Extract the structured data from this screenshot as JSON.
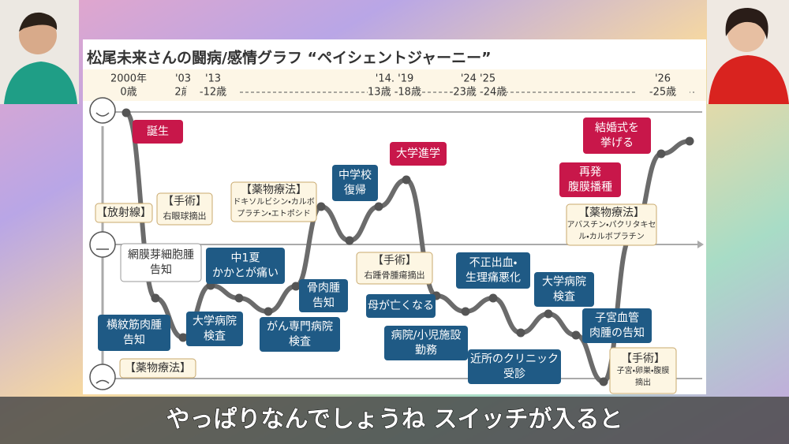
{
  "slide": {
    "title": "松尾未来さんの闘病/感情グラフ “ペイシェントジャーニー”",
    "timeline": [
      {
        "year": "2000年",
        "age": "0歳"
      },
      {
        "year": "'03",
        "age": "2歳"
      },
      {
        "year": "'13",
        "age": "-12歳"
      },
      {
        "year": "'14.  '19",
        "age": "13歳 -18歳"
      },
      {
        "year": "'24  '25",
        "age": "-23歳 -24歳"
      },
      {
        "year": "'26",
        "age": "-25歳"
      }
    ],
    "events": [
      {
        "lines": [
          "誕生"
        ],
        "style": "red"
      },
      {
        "lines": [
          "【手術】",
          "右眼球摘出"
        ],
        "style": "cream"
      },
      {
        "lines": [
          "【放射線】"
        ],
        "style": "cream"
      },
      {
        "lines": [
          "網膜芽細胞腫",
          "告知"
        ],
        "style": "white"
      },
      {
        "lines": [
          "横紋筋肉腫",
          "告知"
        ],
        "style": "blue"
      },
      {
        "lines": [
          "【薬物療法】"
        ],
        "style": "cream"
      },
      {
        "lines": [
          "中1夏",
          "かかとが痛い"
        ],
        "style": "blue"
      },
      {
        "lines": [
          "大学病院",
          "検査"
        ],
        "style": "blue"
      },
      {
        "lines": [
          "がん専門病院",
          "検査"
        ],
        "style": "blue"
      },
      {
        "lines": [
          "骨肉腫",
          "告知"
        ],
        "style": "blue"
      },
      {
        "lines": [
          "【薬物療法】",
          "ドキソルビシン・カルボ",
          "プラチン・エトポシド"
        ],
        "style": "cream"
      },
      {
        "lines": [
          "中学校",
          "復帰"
        ],
        "style": "blue"
      },
      {
        "lines": [
          "大学進学"
        ],
        "style": "red"
      },
      {
        "lines": [
          "【手術】",
          "右踵骨腫瘍摘出"
        ],
        "style": "cream"
      },
      {
        "lines": [
          "母が亡くなる"
        ],
        "style": "blue"
      },
      {
        "lines": [
          "病院/小児施設",
          "勤務"
        ],
        "style": "blue"
      },
      {
        "lines": [
          "不正出血・",
          "生理痛悪化"
        ],
        "style": "blue"
      },
      {
        "lines": [
          "近所のクリニック",
          "受診"
        ],
        "style": "blue"
      },
      {
        "lines": [
          "大学病院",
          "検査"
        ],
        "style": "blue"
      },
      {
        "lines": [
          "子宮血管",
          "肉腫の告知"
        ],
        "style": "blue"
      },
      {
        "lines": [
          "【手術】",
          "子宮・卵巣・腹膜",
          "摘出"
        ],
        "style": "cream"
      },
      {
        "lines": [
          "再発",
          "腹膜播種"
        ],
        "style": "red"
      },
      {
        "lines": [
          "【薬物療法】",
          "アバスチン・パクリタキセ",
          "ル・カルボプラチン"
        ],
        "style": "cream"
      },
      {
        "lines": [
          "結婚式を",
          "挙げる"
        ],
        "style": "red"
      }
    ]
  },
  "subtitle": "やっぱりなんでしょうね スイッチが入ると"
}
